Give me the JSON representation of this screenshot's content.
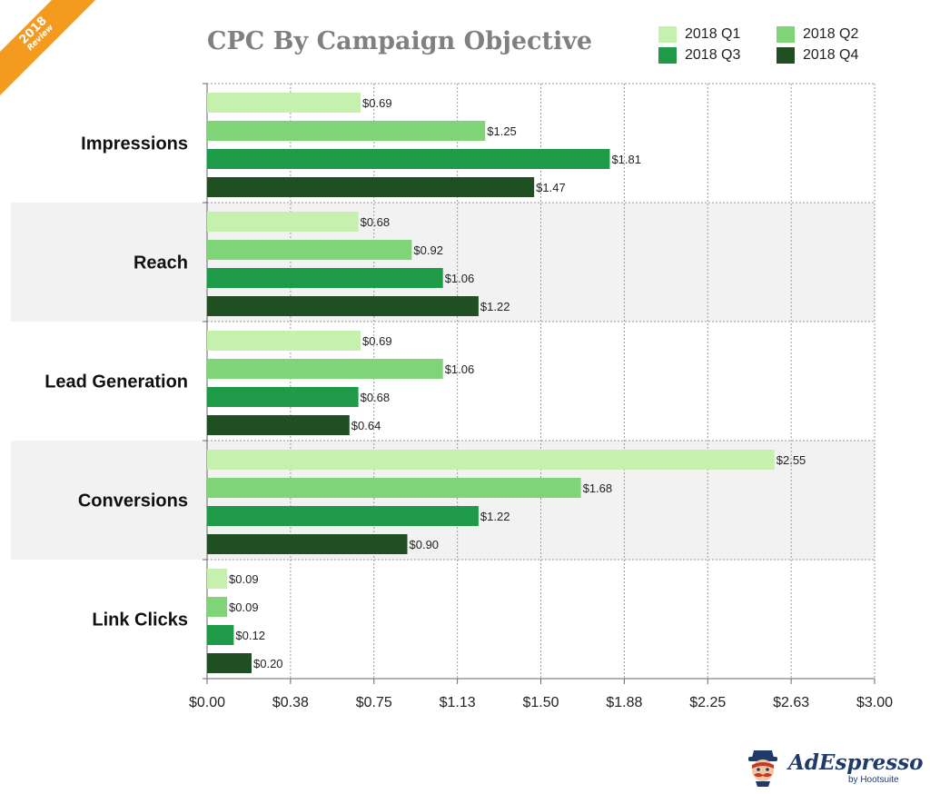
{
  "badge": {
    "year": "2018",
    "subtitle": "Review"
  },
  "logo": {
    "wordmark": "AdEspresso",
    "byline": "by Hootsuite"
  },
  "chart_data": {
    "type": "bar",
    "orientation": "horizontal",
    "title": "CPC By Campaign Objective",
    "xlabel": "",
    "ylabel": "",
    "categories": [
      "Impressions",
      "Reach",
      "Lead Generation",
      "Conversions",
      "Link Clicks"
    ],
    "series": [
      {
        "name": "2018 Q1",
        "color": "#c6f0ae",
        "values": [
          0.69,
          0.68,
          0.69,
          2.55,
          0.09
        ],
        "labels": [
          "$0.69",
          "$0.68",
          "$0.69",
          "$2.55",
          "$0.09"
        ]
      },
      {
        "name": "2018 Q2",
        "color": "#7ed477",
        "values": [
          1.25,
          0.92,
          1.06,
          1.68,
          0.09
        ],
        "labels": [
          "$1.25",
          "$0.92",
          "$1.06",
          "$1.68",
          "$0.09"
        ]
      },
      {
        "name": "2018 Q3",
        "color": "#1f9a48",
        "values": [
          1.81,
          1.06,
          0.68,
          1.22,
          0.12
        ],
        "labels": [
          "$1.81",
          "$1.06",
          "$0.68",
          "$1.22",
          "$0.12"
        ]
      },
      {
        "name": "2018 Q4",
        "color": "#1f4f23",
        "values": [
          1.47,
          1.22,
          0.64,
          0.9,
          0.2
        ],
        "labels": [
          "$1.47",
          "$1.22",
          "$0.64",
          "$0.90",
          "$0.20"
        ]
      }
    ],
    "x_ticks": [
      0,
      0.375,
      0.75,
      1.125,
      1.5,
      1.875,
      2.25,
      2.625,
      3.0
    ],
    "x_tick_labels": [
      "$0.00",
      "$0.38",
      "$0.75",
      "$1.13",
      "$1.50",
      "$1.88",
      "$2.25",
      "$2.63",
      "$3.00"
    ],
    "xlim": [
      0,
      3
    ],
    "grid": true,
    "legend_position": "top-right",
    "alternating_row_shading": [
      "#f2f2f2"
    ]
  }
}
